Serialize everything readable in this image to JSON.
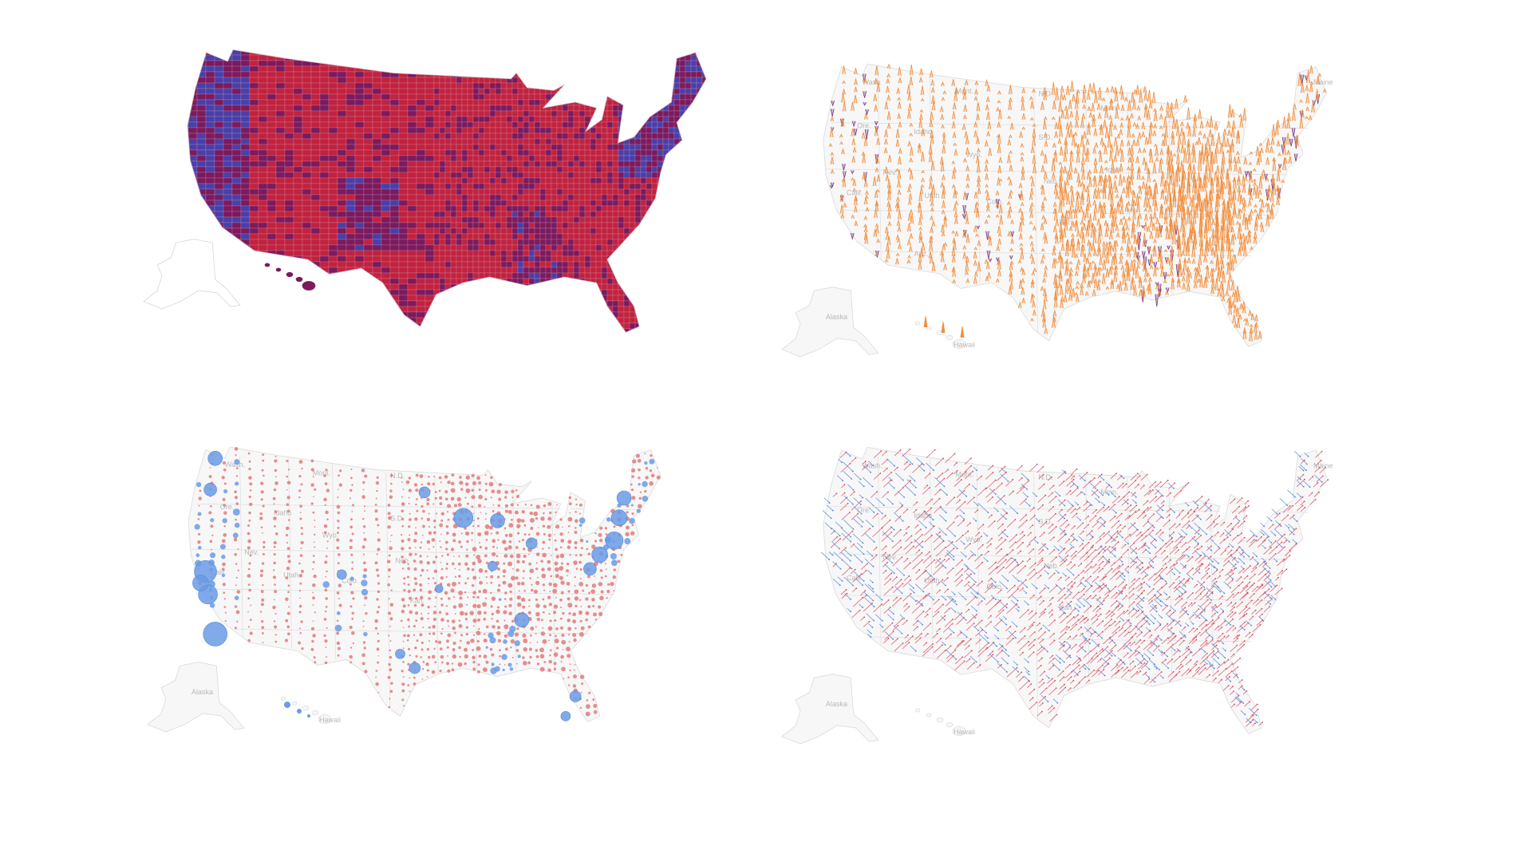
{
  "page": {
    "background": "#ffffff",
    "layout": "2x2 grid of United States county-level election maps"
  },
  "maps": [
    {
      "id": "choropleth",
      "type": "county-choropleth",
      "colors": {
        "red": "#c0223f",
        "purple": "#7b1a5e",
        "blue": "#4a3fa8",
        "border": "#e8c8d4"
      },
      "insets": [
        "Alaska",
        "Hawaii"
      ],
      "labels": []
    },
    {
      "id": "spikes",
      "type": "spike-map",
      "colors": {
        "up_spike": "#f28c38",
        "down_spike": "#7a3b7a",
        "land": "#f7f7f7",
        "border": "#dddddd"
      },
      "labels": [
        "Wash.",
        "Ore.",
        "Calif.",
        "Nev.",
        "Idaho",
        "Mont.",
        "Wyo.",
        "Utah",
        "Ariz.",
        "Colo.",
        "N.D.",
        "S.D.",
        "Neb.",
        "Kan.",
        "Minn.",
        "Iowa",
        "Mo.",
        "Maine",
        "Alaska",
        "Hawaii"
      ]
    },
    {
      "id": "bubbles",
      "type": "proportional-symbol-map",
      "colors": {
        "dem": "#6a9be6",
        "rep": "#e27a7a",
        "land": "#f7f7f7",
        "border": "#dddddd"
      },
      "labels": [
        "Wash.",
        "Ore.",
        "Calif.",
        "Nev.",
        "Idaho",
        "Mont.",
        "Wyo.",
        "Utah",
        "Colo.",
        "N.D.",
        "S.D.",
        "Neb.",
        "Kan.",
        "Alaska",
        "Hawaii"
      ]
    },
    {
      "id": "arrows",
      "type": "shift-arrow-map",
      "colors": {
        "dem_shift": "#4f86dc",
        "rep_shift": "#d9485a",
        "land": "#f7f7f7",
        "border": "#dddddd"
      },
      "labels": [
        "Wash.",
        "Ore.",
        "Calif.",
        "Nev.",
        "Idaho",
        "Mont.",
        "Wyo.",
        "Utah",
        "Colo.",
        "N.D.",
        "S.D.",
        "Neb.",
        "Kan.",
        "Minn.",
        "Maine",
        "Alaska",
        "Hawaii"
      ]
    }
  ]
}
